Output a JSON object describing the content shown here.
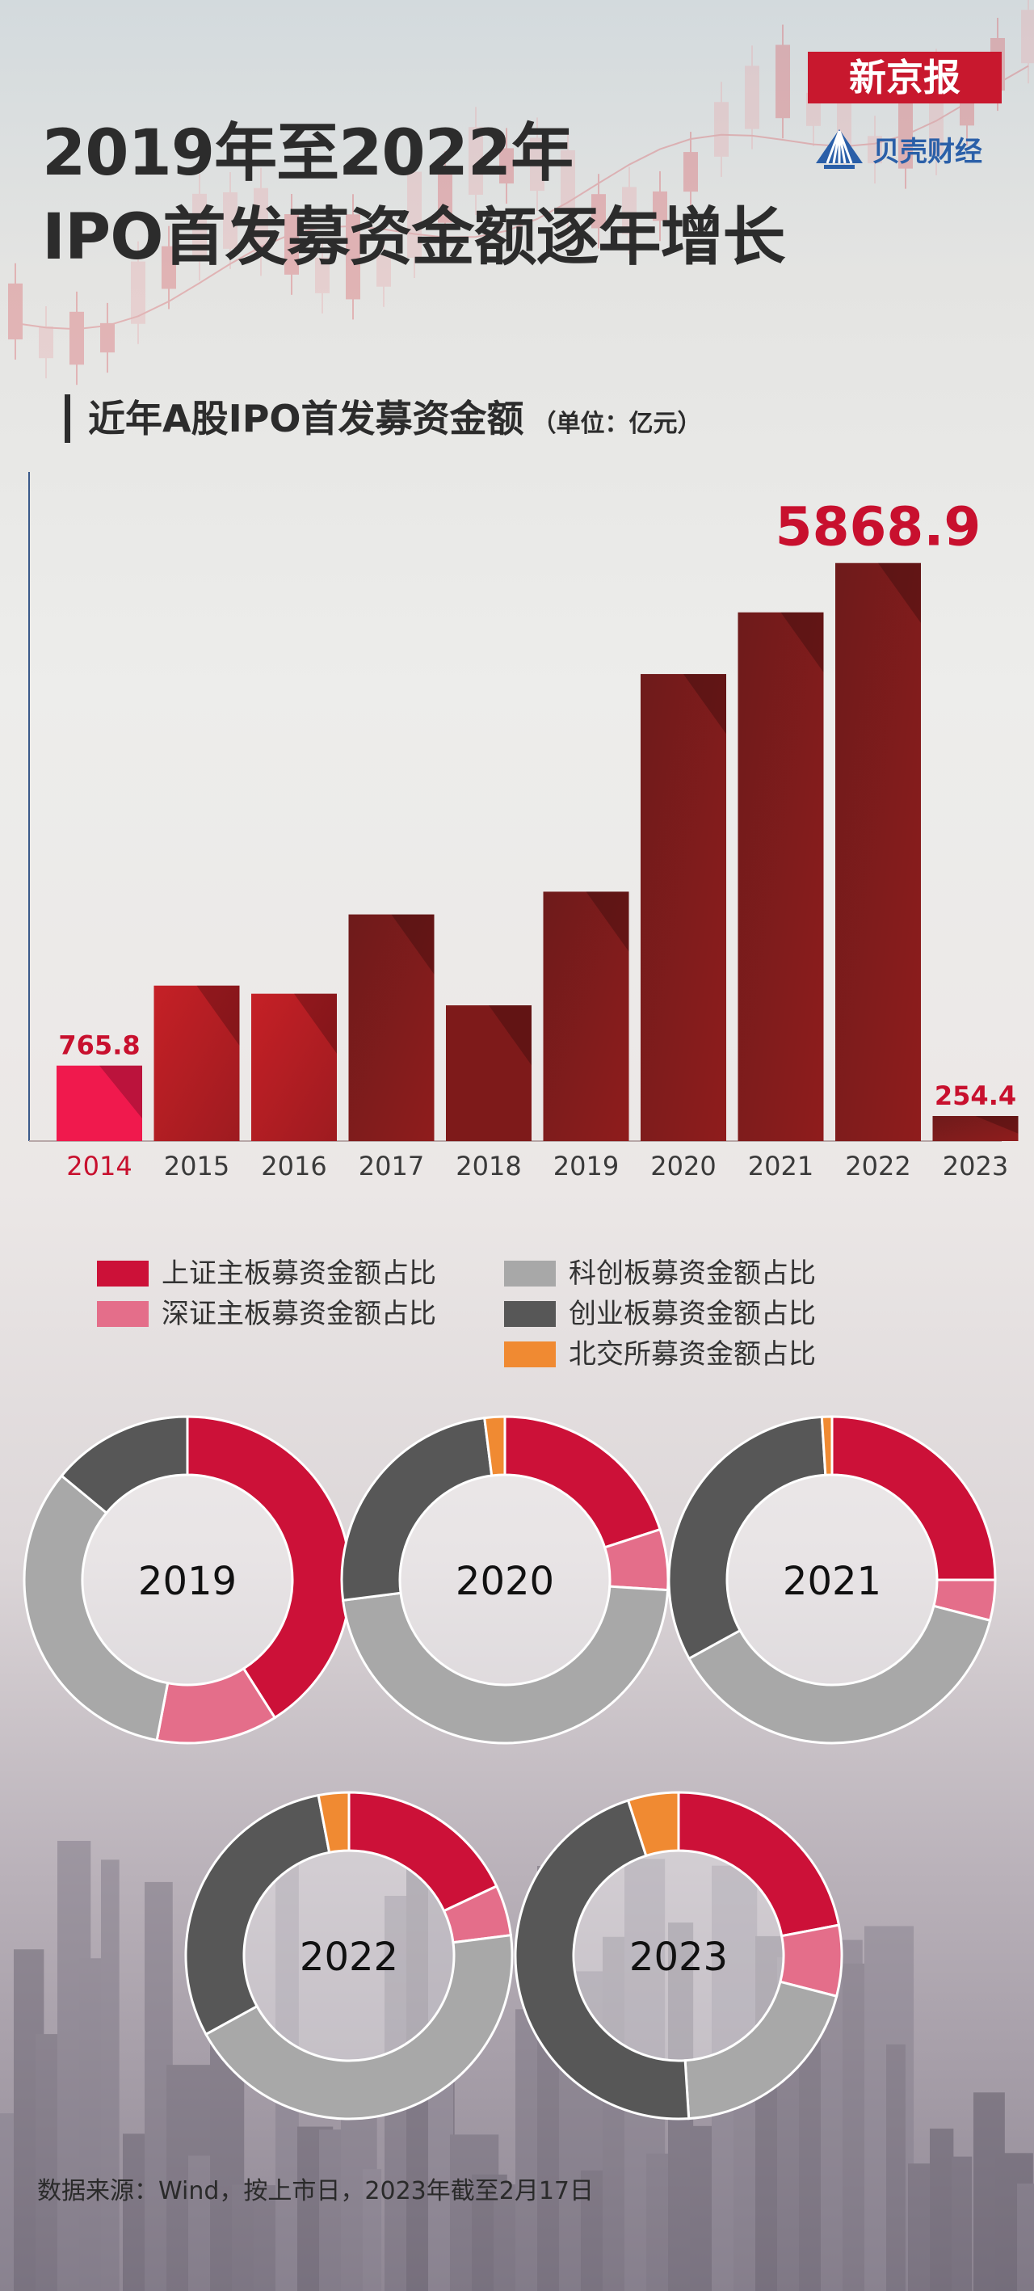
{
  "title": {
    "line1": "2019年至2022年",
    "line2": "IPO首发募资金额逐年增长"
  },
  "brand": {
    "newspaper": "新京报",
    "finance": "贝壳财经"
  },
  "subtitle": {
    "main": "近年A股IPO首发募资金额",
    "unit": "（单位：亿元）"
  },
  "colors": {
    "bar_dark": "#6e1b1b",
    "bar_red": "#c52026",
    "bar_2014": "#f0194d",
    "label_red": "#c8102e",
    "sh_main": "#cc1138",
    "sz_main": "#e46e8a",
    "star": "#a8a8a8",
    "chinext": "#575757",
    "bse": "#f08a32"
  },
  "chart_data": [
    {
      "type": "bar",
      "categories": [
        "2014",
        "2015",
        "2016",
        "2017",
        "2018",
        "2019",
        "2020",
        "2021",
        "2022",
        "2023"
      ],
      "values": [
        765.8,
        1578,
        1496,
        2301,
        1378,
        2532,
        4742,
        5368,
        5868.9,
        254.4
      ],
      "data_labels": [
        "765.8",
        "",
        "",
        "",
        "",
        "",
        "",
        "",
        "5868.9",
        "254.4"
      ],
      "ylim": [
        0,
        6400
      ],
      "grid": false
    },
    {
      "type": "pie",
      "series_names": [
        "上证主板募资金额占比",
        "深证主板募资金额占比",
        "科创板募资金额占比",
        "创业板募资金额占比",
        "北交所募资金额占比"
      ],
      "series_colors": [
        "#cc1138",
        "#e46e8a",
        "#a8a8a8",
        "#575757",
        "#f08a32"
      ],
      "legend_position": "top",
      "years": [
        {
          "label": "2019",
          "values": [
            0.41,
            0.12,
            0.33,
            0.14,
            0.0
          ]
        },
        {
          "label": "2020",
          "values": [
            0.2,
            0.06,
            0.47,
            0.25,
            0.02
          ]
        },
        {
          "label": "2021",
          "values": [
            0.25,
            0.04,
            0.38,
            0.32,
            0.01
          ]
        },
        {
          "label": "2022",
          "values": [
            0.18,
            0.05,
            0.44,
            0.3,
            0.03
          ]
        },
        {
          "label": "2023",
          "values": [
            0.22,
            0.07,
            0.2,
            0.46,
            0.05
          ]
        }
      ]
    }
  ],
  "source": "数据来源：Wind，按上市日，2023年截至2月17日"
}
